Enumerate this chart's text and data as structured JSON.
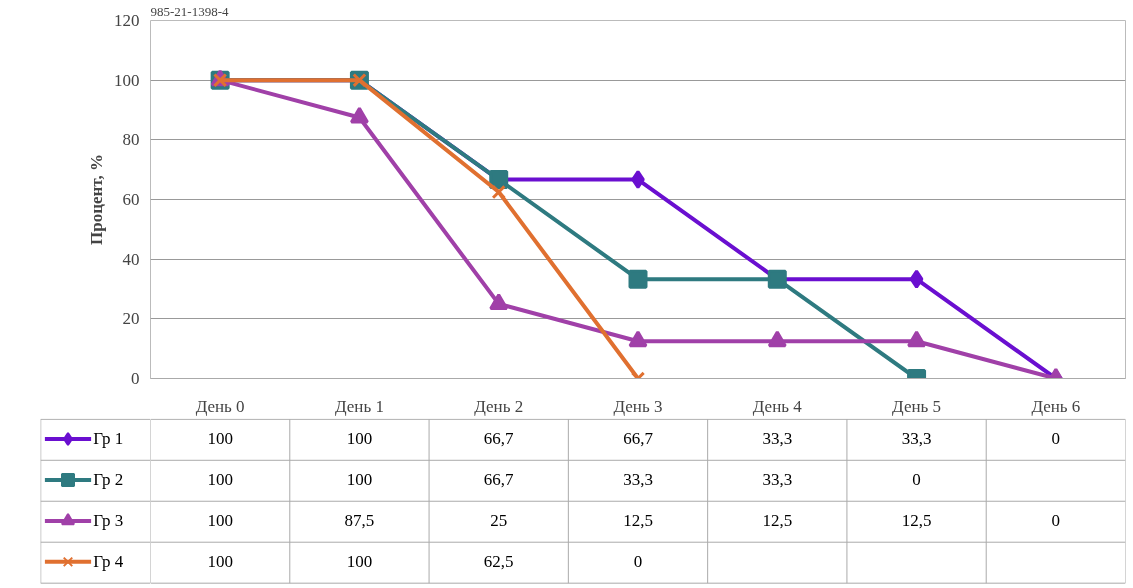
{
  "chart_data": {
    "type": "line",
    "annotations": [
      "985-21-1398-4"
    ],
    "ylabel": "Процент, %",
    "categories": [
      "День 0",
      "День 1",
      "День 2",
      "День 3",
      "День 4",
      "День 5",
      "День 6"
    ],
    "ylim": [
      0,
      120
    ],
    "yticks": [
      0,
      20,
      40,
      60,
      80,
      100,
      120
    ],
    "grid": "y",
    "legend": "bottom left",
    "series": [
      {
        "name": "Гр 1",
        "color": "#6a0fd0",
        "marker": "diamond",
        "values": [
          100,
          100,
          66.7,
          66.7,
          33.3,
          33.3,
          0
        ],
        "value_labels": [
          "100",
          "100",
          "66,7",
          "66,7",
          "33,3",
          "33,3",
          "0"
        ]
      },
      {
        "name": "Гр 2",
        "color": "#2e7a80",
        "marker": "square",
        "values": [
          100,
          100,
          66.7,
          33.3,
          33.3,
          0,
          null
        ],
        "value_labels": [
          "100",
          "100",
          "66,7",
          "33,3",
          "33,3",
          "0",
          null
        ]
      },
      {
        "name": "Гр 3",
        "color": "#a040a8",
        "marker": "triangle",
        "values": [
          100,
          87.5,
          25,
          12.5,
          12.5,
          12.5,
          0
        ],
        "value_labels": [
          "100",
          "87,5",
          "25",
          "12,5",
          "12,5",
          "12,5",
          "0"
        ]
      },
      {
        "name": "Гр 4",
        "color": "#e07030",
        "marker": "cross",
        "values": [
          100,
          100,
          62.5,
          0,
          null,
          null,
          null
        ],
        "value_labels": [
          "100",
          "100",
          "62,5",
          "0",
          null,
          null,
          null
        ]
      }
    ]
  }
}
